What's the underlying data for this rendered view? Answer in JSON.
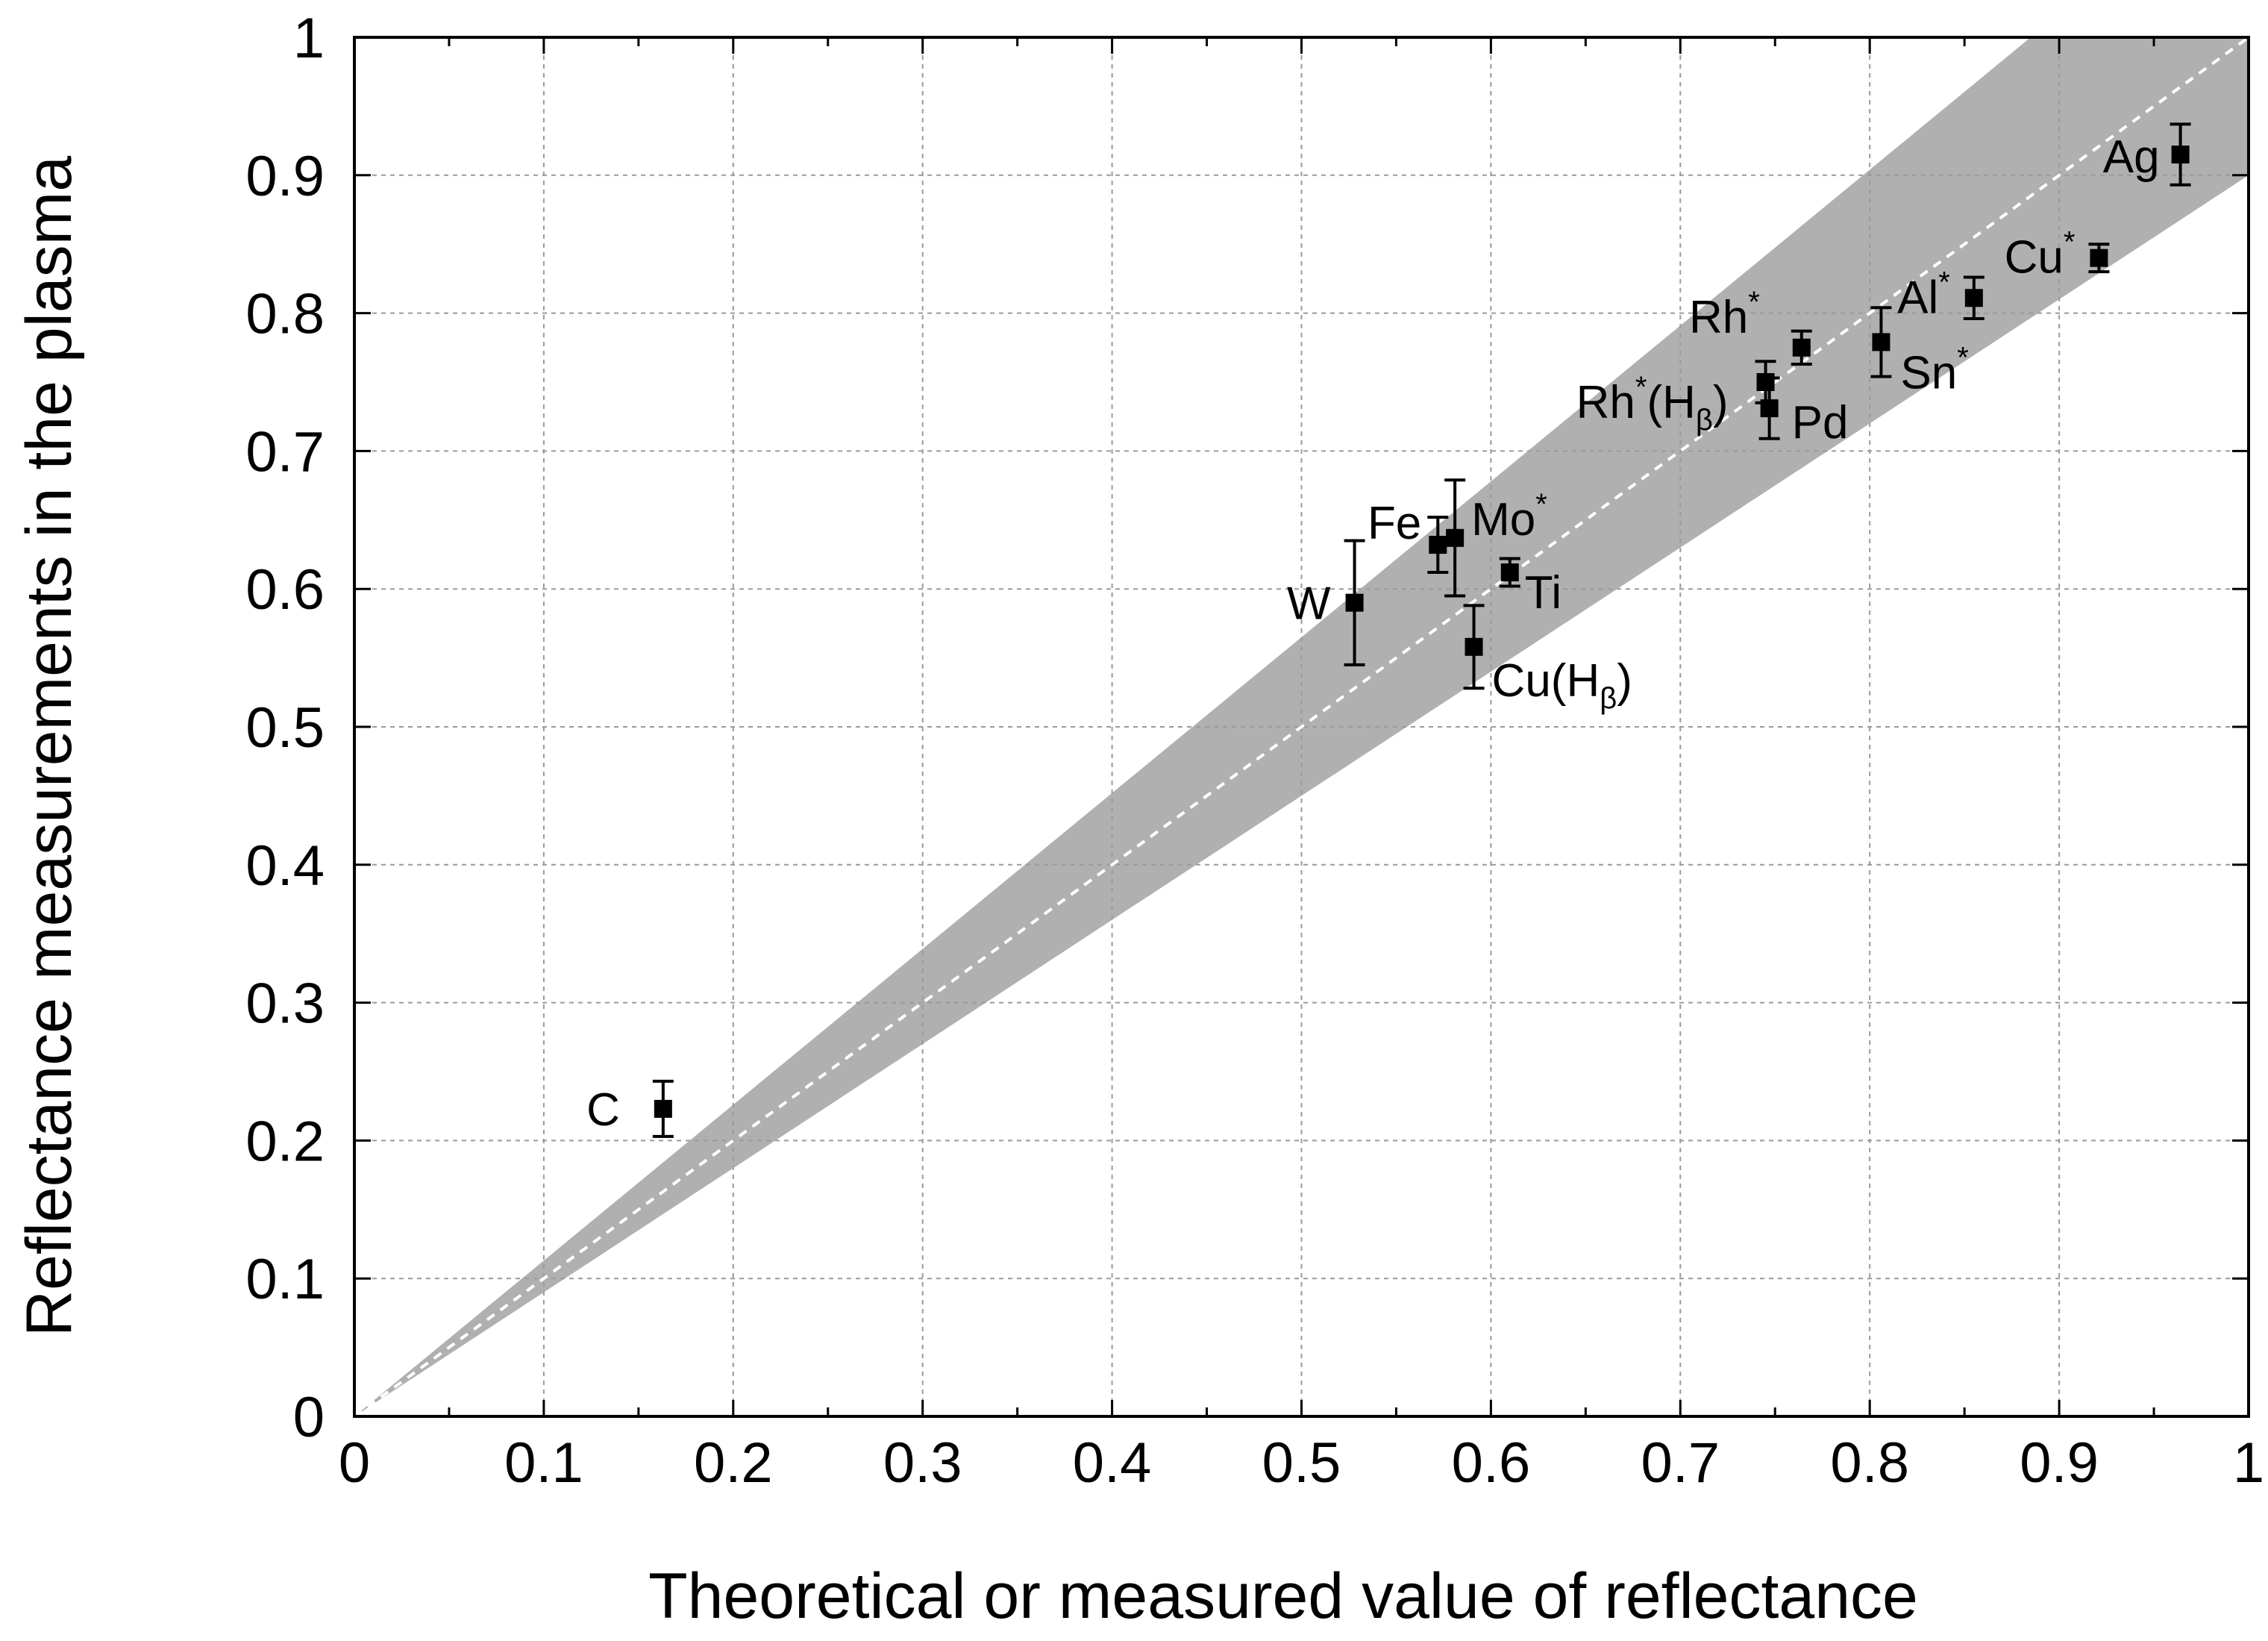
{
  "chart_data": {
    "type": "scatter",
    "title": "",
    "xlabel": "Theoretical or measured value of reflectance",
    "ylabel": "Reflectance measurements in the plasma",
    "xlim": [
      0,
      1
    ],
    "ylim": [
      0,
      1
    ],
    "xticks": [
      "0",
      "0.1",
      "0.2",
      "0.3",
      "0.4",
      "0.5",
      "0.6",
      "0.7",
      "0.8",
      "0.9",
      "1"
    ],
    "yticks": [
      "0",
      "0.1",
      "0.2",
      "0.3",
      "0.4",
      "0.5",
      "0.6",
      "0.7",
      "0.8",
      "0.9",
      "1"
    ],
    "grid": true,
    "reference_line": {
      "slope": 1,
      "style": "dashed",
      "color": "#ffffff"
    },
    "band": {
      "lower_slope": 0.9,
      "upper_slope": 1.13,
      "color": "#b0b0b0"
    },
    "points": [
      {
        "label": "C",
        "label_sup": "",
        "label_sub": "",
        "x": 0.163,
        "y": 0.223,
        "yerr": 0.02
      },
      {
        "label": "W",
        "label_sup": "",
        "label_sub": "",
        "x": 0.528,
        "y": 0.59,
        "yerr": 0.045
      },
      {
        "label": "Fe",
        "label_sup": "",
        "label_sub": "",
        "x": 0.572,
        "y": 0.632,
        "yerr": 0.02
      },
      {
        "label": "Mo",
        "label_sup": "*",
        "label_sub": "",
        "x": 0.581,
        "y": 0.637,
        "yerr": 0.042
      },
      {
        "label": "Ti",
        "label_sup": "",
        "label_sub": "",
        "x": 0.61,
        "y": 0.612,
        "yerr": 0.01
      },
      {
        "label": "Cu(H",
        "label_sup": "",
        "label_sub": "β",
        "label_tail": ")",
        "x": 0.591,
        "y": 0.558,
        "yerr": 0.03
      },
      {
        "label": "Rh",
        "label_sup": "*",
        "label_sub": "β",
        "label_prefix_after_sup": "(H",
        "label_tail": ")",
        "x": 0.745,
        "y": 0.75,
        "yerr": 0.015
      },
      {
        "label": "Rh",
        "label_sup": "*",
        "label_sub": "",
        "x": 0.764,
        "y": 0.775,
        "yerr": 0.012
      },
      {
        "label": "Pd",
        "label_sup": "",
        "label_sub": "",
        "x": 0.747,
        "y": 0.731,
        "yerr": 0.022
      },
      {
        "label": "Sn",
        "label_sup": "*",
        "label_sub": "",
        "x": 0.806,
        "y": 0.779,
        "yerr": 0.025
      },
      {
        "label": "Al",
        "label_sup": "*",
        "label_sub": "",
        "x": 0.855,
        "y": 0.811,
        "yerr": 0.015
      },
      {
        "label": "Cu",
        "label_sup": "*",
        "label_sub": "",
        "x": 0.921,
        "y": 0.84,
        "yerr": 0.01
      },
      {
        "label": "Ag",
        "label_sup": "",
        "label_sub": "",
        "x": 0.964,
        "y": 0.915,
        "yerr": 0.022
      }
    ]
  }
}
